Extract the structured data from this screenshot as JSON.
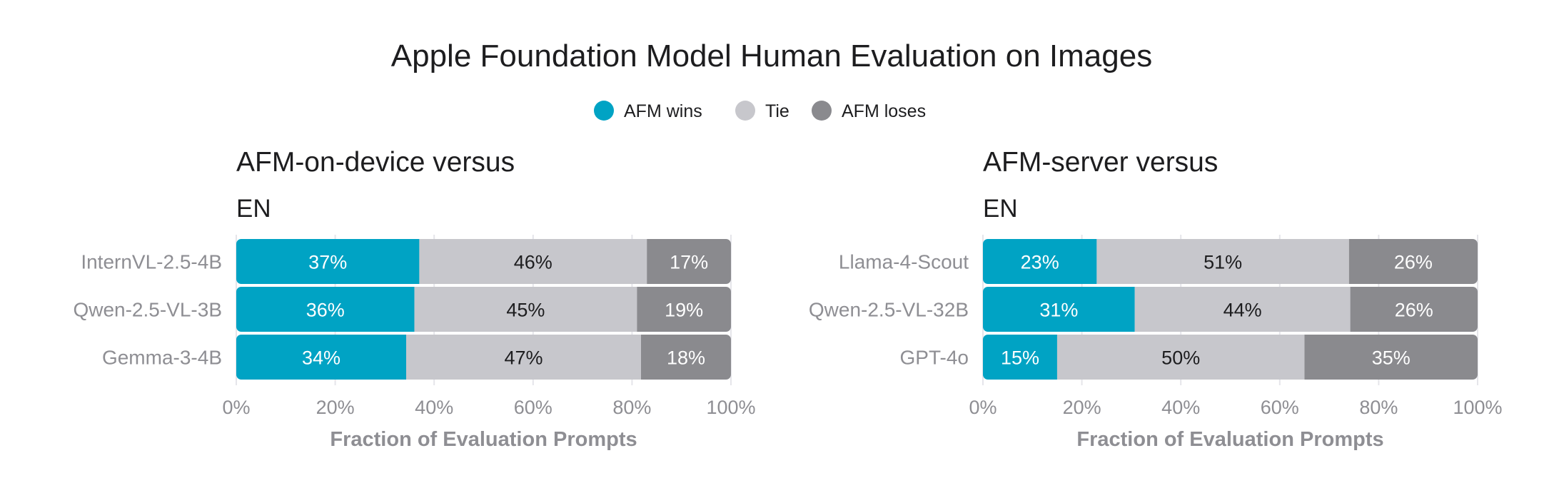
{
  "title": "Apple Foundation Model Human Evaluation on Images",
  "legend": [
    {
      "label": "AFM wins",
      "color": "#00a3c4"
    },
    {
      "label": "Tie",
      "color": "#c7c7cc"
    },
    {
      "label": "AFM loses",
      "color": "#8a8a8e"
    }
  ],
  "chart_data": [
    {
      "type": "bar",
      "orientation": "horizontal",
      "stacked": true,
      "title": "AFM-on-device versus",
      "subtitle": "EN",
      "xlabel": "Fraction of Evaluation Prompts",
      "xlim": [
        0,
        100
      ],
      "xticks": [
        "0%",
        "20%",
        "40%",
        "60%",
        "80%",
        "100%"
      ],
      "grid": true,
      "categories": [
        "InternVL-2.5-4B",
        "Qwen-2.5-VL-3B",
        "Gemma-3-4B"
      ],
      "series": [
        {
          "name": "AFM wins",
          "values": [
            37,
            36,
            34
          ]
        },
        {
          "name": "Tie",
          "values": [
            46,
            45,
            47
          ]
        },
        {
          "name": "AFM loses",
          "values": [
            17,
            19,
            18
          ]
        }
      ]
    },
    {
      "type": "bar",
      "orientation": "horizontal",
      "stacked": true,
      "title": "AFM-server versus",
      "subtitle": "EN",
      "xlabel": "Fraction of Evaluation Prompts",
      "xlim": [
        0,
        100
      ],
      "xticks": [
        "0%",
        "20%",
        "40%",
        "60%",
        "80%",
        "100%"
      ],
      "grid": true,
      "categories": [
        "Llama-4-Scout",
        "Qwen-2.5-VL-32B",
        "GPT-4o"
      ],
      "series": [
        {
          "name": "AFM wins",
          "values": [
            23,
            31,
            15
          ]
        },
        {
          "name": "Tie",
          "values": [
            51,
            44,
            50
          ]
        },
        {
          "name": "AFM loses",
          "values": [
            26,
            26,
            35
          ]
        }
      ]
    }
  ]
}
